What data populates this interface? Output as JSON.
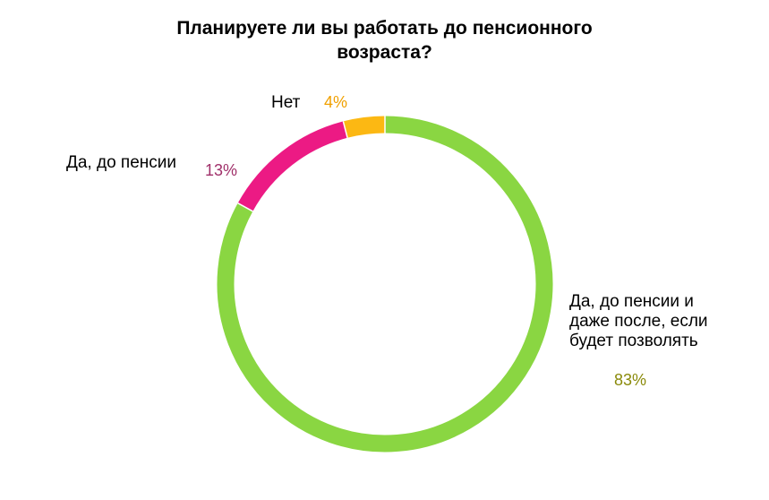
{
  "chart_data": {
    "type": "pie",
    "title_lines": [
      "Планируете ли вы работать до пенсионного",
      "возраста?"
    ],
    "slices": [
      {
        "category_lines": [
          "Да, до пенсии и",
          "даже после, если",
          "будет позволять"
        ],
        "value": 83,
        "value_label": "83%",
        "color": "#8ad642",
        "label_color": "#8a8a0a"
      },
      {
        "category_lines": [
          "Да, до пенсии"
        ],
        "value": 13,
        "value_label": "13%",
        "color": "#ec1a84",
        "label_color": "#a0306a"
      },
      {
        "category_lines": [
          "Нет"
        ],
        "value": 4,
        "value_label": "4%",
        "color": "#fcb813",
        "label_color": "#f0a000"
      }
    ]
  }
}
